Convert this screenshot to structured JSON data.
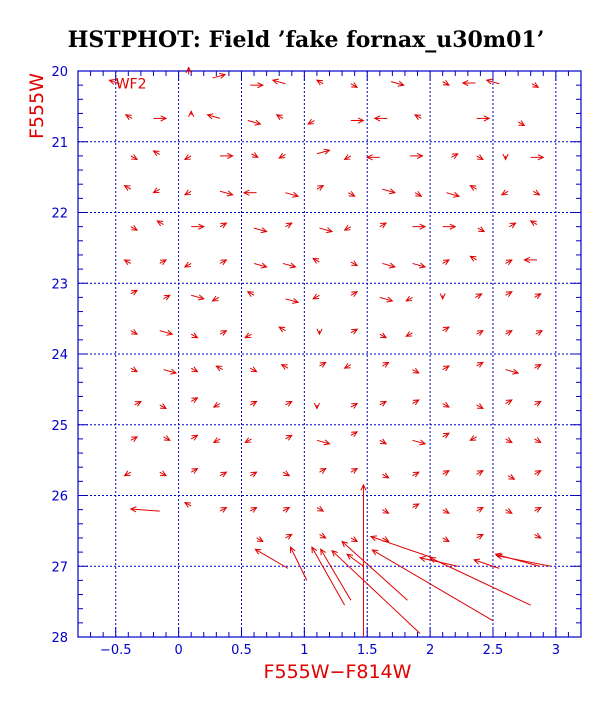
{
  "chart_data": {
    "type": "vector-field",
    "title": "HSTPHOT: Field ’fake fornax_u30m01’",
    "xlabel": "F555W−F814W",
    "ylabel": "F555W",
    "chip_label": "WF2",
    "xlim": [
      -0.8,
      3.2
    ],
    "ylim": [
      28,
      20
    ],
    "xticks": [
      -0.5,
      0,
      0.5,
      1,
      1.5,
      2,
      2.5,
      3
    ],
    "xtick_labels": [
      "−0.5",
      "0",
      "0.5",
      "1",
      "1.5",
      "2",
      "2.5",
      "3"
    ],
    "yticks": [
      20,
      21,
      22,
      23,
      24,
      25,
      26,
      27,
      28
    ],
    "ytick_labels": [
      "20",
      "21",
      "22",
      "23",
      "24",
      "25",
      "26",
      "27",
      "28"
    ],
    "grid_x": [
      -0.5,
      0,
      0.5,
      1,
      1.5,
      2,
      2.5,
      3
    ],
    "grid_y": [
      21,
      22,
      23,
      24,
      25,
      26,
      27
    ],
    "colors": {
      "axis": "#0000c8",
      "vectors": "#e00000",
      "title": "#000000"
    },
    "vectors": [
      {
        "x": -0.47,
        "y": 20.18,
        "dx": -0.08,
        "dy": -0.05
      },
      {
        "x": 0.08,
        "y": 20.05,
        "dx": 0.0,
        "dy": -0.1
      },
      {
        "x": 0.27,
        "y": 20.1,
        "dx": 0.1,
        "dy": -0.05
      },
      {
        "x": 0.57,
        "y": 20.2,
        "dx": 0.1,
        "dy": 0.0
      },
      {
        "x": 0.85,
        "y": 20.18,
        "dx": -0.1,
        "dy": -0.05
      },
      {
        "x": 1.15,
        "y": 20.18,
        "dx": -0.05,
        "dy": -0.05
      },
      {
        "x": 1.37,
        "y": 20.18,
        "dx": 0.05,
        "dy": 0.05
      },
      {
        "x": 1.69,
        "y": 20.15,
        "dx": 0.1,
        "dy": 0.05
      },
      {
        "x": 2.1,
        "y": 20.15,
        "dx": 0.05,
        "dy": 0.05
      },
      {
        "x": 2.36,
        "y": 20.17,
        "dx": -0.1,
        "dy": 0.0
      },
      {
        "x": 2.55,
        "y": 20.18,
        "dx": -0.1,
        "dy": -0.05
      },
      {
        "x": 2.81,
        "y": 20.18,
        "dx": 0.05,
        "dy": 0.05
      },
      {
        "x": -0.37,
        "y": 20.67,
        "dx": -0.05,
        "dy": -0.05
      },
      {
        "x": -0.2,
        "y": 20.67,
        "dx": 0.1,
        "dy": 0.0
      },
      {
        "x": 0.1,
        "y": 20.62,
        "dx": 0.0,
        "dy": -0.05
      },
      {
        "x": 0.33,
        "y": 20.67,
        "dx": -0.1,
        "dy": -0.05
      },
      {
        "x": 0.55,
        "y": 20.7,
        "dx": 0.1,
        "dy": 0.05
      },
      {
        "x": 0.83,
        "y": 20.67,
        "dx": -0.05,
        "dy": -0.05
      },
      {
        "x": 1.08,
        "y": 20.7,
        "dx": -0.05,
        "dy": 0.05
      },
      {
        "x": 1.37,
        "y": 20.7,
        "dx": 0.1,
        "dy": 0.0
      },
      {
        "x": 1.66,
        "y": 20.67,
        "dx": -0.1,
        "dy": 0.0
      },
      {
        "x": 1.93,
        "y": 20.67,
        "dx": -0.05,
        "dy": -0.05
      },
      {
        "x": 2.37,
        "y": 20.67,
        "dx": 0.1,
        "dy": 0.0
      },
      {
        "x": 2.7,
        "y": 20.72,
        "dx": 0.05,
        "dy": 0.05
      },
      {
        "x": -0.38,
        "y": 21.2,
        "dx": 0.05,
        "dy": 0.05
      },
      {
        "x": -0.15,
        "y": 21.18,
        "dx": -0.05,
        "dy": -0.05
      },
      {
        "x": 0.1,
        "y": 21.2,
        "dx": -0.05,
        "dy": 0.05
      },
      {
        "x": 0.33,
        "y": 21.2,
        "dx": 0.1,
        "dy": 0.0
      },
      {
        "x": 0.58,
        "y": 21.17,
        "dx": 0.05,
        "dy": 0.05
      },
      {
        "x": 0.85,
        "y": 21.18,
        "dx": -0.05,
        "dy": 0.05
      },
      {
        "x": 1.1,
        "y": 21.17,
        "dx": 0.1,
        "dy": -0.05
      },
      {
        "x": 1.37,
        "y": 21.2,
        "dx": -0.05,
        "dy": 0.05
      },
      {
        "x": 1.6,
        "y": 21.22,
        "dx": -0.1,
        "dy": 0.0
      },
      {
        "x": 1.84,
        "y": 21.2,
        "dx": 0.1,
        "dy": 0.0
      },
      {
        "x": 2.17,
        "y": 21.22,
        "dx": 0.05,
        "dy": -0.05
      },
      {
        "x": 2.37,
        "y": 21.2,
        "dx": 0.05,
        "dy": 0.05
      },
      {
        "x": 2.6,
        "y": 21.2,
        "dx": 0.0,
        "dy": 0.05
      },
      {
        "x": 2.8,
        "y": 21.22,
        "dx": 0.1,
        "dy": 0.0
      },
      {
        "x": -0.38,
        "y": 21.67,
        "dx": -0.05,
        "dy": -0.05
      },
      {
        "x": -0.15,
        "y": 21.67,
        "dx": -0.05,
        "dy": 0.05
      },
      {
        "x": 0.1,
        "y": 21.7,
        "dx": -0.05,
        "dy": 0.05
      },
      {
        "x": 0.33,
        "y": 21.7,
        "dx": 0.1,
        "dy": 0.05
      },
      {
        "x": 0.62,
        "y": 21.72,
        "dx": -0.1,
        "dy": 0.0
      },
      {
        "x": 0.85,
        "y": 21.72,
        "dx": 0.1,
        "dy": 0.05
      },
      {
        "x": 1.1,
        "y": 21.67,
        "dx": 0.05,
        "dy": -0.05
      },
      {
        "x": 1.35,
        "y": 21.72,
        "dx": 0.05,
        "dy": 0.05
      },
      {
        "x": 1.62,
        "y": 21.67,
        "dx": 0.1,
        "dy": 0.05
      },
      {
        "x": 1.88,
        "y": 21.72,
        "dx": 0.05,
        "dy": 0.05
      },
      {
        "x": 2.13,
        "y": 21.72,
        "dx": 0.1,
        "dy": 0.05
      },
      {
        "x": 2.37,
        "y": 21.67,
        "dx": -0.05,
        "dy": -0.05
      },
      {
        "x": 2.62,
        "y": 21.7,
        "dx": -0.05,
        "dy": 0.05
      },
      {
        "x": 2.82,
        "y": 21.7,
        "dx": 0.05,
        "dy": 0.05
      },
      {
        "x": -0.38,
        "y": 22.2,
        "dx": 0.05,
        "dy": 0.05
      },
      {
        "x": -0.12,
        "y": 22.17,
        "dx": -0.05,
        "dy": -0.05
      },
      {
        "x": 0.1,
        "y": 22.2,
        "dx": 0.1,
        "dy": 0.0
      },
      {
        "x": 0.33,
        "y": 22.2,
        "dx": 0.05,
        "dy": -0.05
      },
      {
        "x": 0.6,
        "y": 22.22,
        "dx": 0.1,
        "dy": 0.05
      },
      {
        "x": 0.85,
        "y": 22.2,
        "dx": 0.05,
        "dy": -0.05
      },
      {
        "x": 1.12,
        "y": 22.22,
        "dx": 0.1,
        "dy": 0.05
      },
      {
        "x": 1.37,
        "y": 22.2,
        "dx": -0.05,
        "dy": 0.05
      },
      {
        "x": 1.6,
        "y": 22.2,
        "dx": 0.05,
        "dy": -0.05
      },
      {
        "x": 1.86,
        "y": 22.2,
        "dx": 0.1,
        "dy": 0.0
      },
      {
        "x": 2.1,
        "y": 22.2,
        "dx": 0.1,
        "dy": 0.0
      },
      {
        "x": 2.38,
        "y": 22.22,
        "dx": 0.05,
        "dy": 0.05
      },
      {
        "x": 2.63,
        "y": 22.2,
        "dx": 0.05,
        "dy": -0.05
      },
      {
        "x": 2.85,
        "y": 22.17,
        "dx": -0.05,
        "dy": -0.05
      },
      {
        "x": -0.38,
        "y": 22.72,
        "dx": -0.05,
        "dy": -0.05
      },
      {
        "x": -0.15,
        "y": 22.72,
        "dx": 0.05,
        "dy": -0.05
      },
      {
        "x": 0.1,
        "y": 22.72,
        "dx": -0.05,
        "dy": 0.05
      },
      {
        "x": 0.33,
        "y": 22.72,
        "dx": 0.05,
        "dy": -0.05
      },
      {
        "x": 0.6,
        "y": 22.72,
        "dx": 0.1,
        "dy": 0.05
      },
      {
        "x": 0.83,
        "y": 22.72,
        "dx": 0.1,
        "dy": 0.05
      },
      {
        "x": 1.12,
        "y": 22.7,
        "dx": -0.05,
        "dy": -0.05
      },
      {
        "x": 1.37,
        "y": 22.7,
        "dx": 0.05,
        "dy": 0.05
      },
      {
        "x": 1.62,
        "y": 22.72,
        "dx": 0.1,
        "dy": 0.05
      },
      {
        "x": 1.86,
        "y": 22.72,
        "dx": 0.1,
        "dy": 0.05
      },
      {
        "x": 2.1,
        "y": 22.72,
        "dx": 0.05,
        "dy": -0.05
      },
      {
        "x": 2.37,
        "y": 22.67,
        "dx": -0.05,
        "dy": -0.05
      },
      {
        "x": 2.6,
        "y": 22.72,
        "dx": 0.05,
        "dy": -0.05
      },
      {
        "x": 2.85,
        "y": 22.67,
        "dx": -0.1,
        "dy": 0.0
      },
      {
        "x": -0.38,
        "y": 23.15,
        "dx": 0.05,
        "dy": -0.05
      },
      {
        "x": -0.12,
        "y": 23.22,
        "dx": 0.05,
        "dy": -0.05
      },
      {
        "x": 0.1,
        "y": 23.17,
        "dx": 0.1,
        "dy": 0.05
      },
      {
        "x": 0.32,
        "y": 23.2,
        "dx": -0.05,
        "dy": 0.05
      },
      {
        "x": 0.6,
        "y": 23.17,
        "dx": -0.05,
        "dy": -0.05
      },
      {
        "x": 0.85,
        "y": 23.22,
        "dx": 0.1,
        "dy": 0.05
      },
      {
        "x": 1.12,
        "y": 23.17,
        "dx": -0.05,
        "dy": 0.05
      },
      {
        "x": 1.37,
        "y": 23.17,
        "dx": 0.05,
        "dy": -0.05
      },
      {
        "x": 1.6,
        "y": 23.2,
        "dx": 0.1,
        "dy": 0.05
      },
      {
        "x": 1.86,
        "y": 23.2,
        "dx": -0.05,
        "dy": 0.05
      },
      {
        "x": 2.1,
        "y": 23.17,
        "dx": 0.0,
        "dy": 0.05
      },
      {
        "x": 2.36,
        "y": 23.2,
        "dx": 0.05,
        "dy": -0.05
      },
      {
        "x": 2.6,
        "y": 23.17,
        "dx": 0.05,
        "dy": -0.05
      },
      {
        "x": 2.83,
        "y": 23.2,
        "dx": 0.05,
        "dy": -0.05
      },
      {
        "x": -0.38,
        "y": 23.67,
        "dx": 0.05,
        "dy": 0.05
      },
      {
        "x": -0.15,
        "y": 23.67,
        "dx": 0.1,
        "dy": 0.05
      },
      {
        "x": 0.1,
        "y": 23.72,
        "dx": 0.05,
        "dy": 0.05
      },
      {
        "x": 0.33,
        "y": 23.72,
        "dx": 0.05,
        "dy": -0.05
      },
      {
        "x": 0.58,
        "y": 23.72,
        "dx": -0.05,
        "dy": 0.05
      },
      {
        "x": 0.85,
        "y": 23.67,
        "dx": -0.05,
        "dy": -0.05
      },
      {
        "x": 1.12,
        "y": 23.67,
        "dx": 0.0,
        "dy": 0.05
      },
      {
        "x": 1.37,
        "y": 23.7,
        "dx": 0.05,
        "dy": -0.05
      },
      {
        "x": 1.6,
        "y": 23.72,
        "dx": 0.05,
        "dy": 0.05
      },
      {
        "x": 1.86,
        "y": 23.7,
        "dx": -0.05,
        "dy": 0.05
      },
      {
        "x": 2.1,
        "y": 23.67,
        "dx": 0.05,
        "dy": -0.05
      },
      {
        "x": 2.37,
        "y": 23.72,
        "dx": 0.05,
        "dy": -0.05
      },
      {
        "x": 2.6,
        "y": 23.72,
        "dx": 0.05,
        "dy": -0.05
      },
      {
        "x": 2.84,
        "y": 23.72,
        "dx": 0.05,
        "dy": -0.05
      },
      {
        "x": -0.38,
        "y": 24.2,
        "dx": 0.05,
        "dy": 0.05
      },
      {
        "x": -0.12,
        "y": 24.22,
        "dx": 0.1,
        "dy": 0.05
      },
      {
        "x": 0.1,
        "y": 24.2,
        "dx": 0.05,
        "dy": 0.05
      },
      {
        "x": 0.35,
        "y": 24.22,
        "dx": -0.05,
        "dy": -0.05
      },
      {
        "x": 0.57,
        "y": 24.2,
        "dx": 0.05,
        "dy": 0.05
      },
      {
        "x": 0.87,
        "y": 24.2,
        "dx": -0.05,
        "dy": -0.05
      },
      {
        "x": 1.12,
        "y": 24.17,
        "dx": 0.05,
        "dy": -0.05
      },
      {
        "x": 1.37,
        "y": 24.15,
        "dx": -0.05,
        "dy": 0.05
      },
      {
        "x": 1.62,
        "y": 24.17,
        "dx": 0.05,
        "dy": -0.05
      },
      {
        "x": 1.86,
        "y": 24.22,
        "dx": 0.05,
        "dy": 0.05
      },
      {
        "x": 2.1,
        "y": 24.22,
        "dx": 0.05,
        "dy": -0.05
      },
      {
        "x": 2.37,
        "y": 24.17,
        "dx": 0.05,
        "dy": -0.05
      },
      {
        "x": 2.6,
        "y": 24.22,
        "dx": 0.1,
        "dy": 0.05
      },
      {
        "x": 2.83,
        "y": 24.2,
        "dx": 0.05,
        "dy": -0.05
      },
      {
        "x": -0.35,
        "y": 24.72,
        "dx": 0.05,
        "dy": -0.05
      },
      {
        "x": -0.15,
        "y": 24.72,
        "dx": 0.05,
        "dy": 0.05
      },
      {
        "x": 0.1,
        "y": 24.67,
        "dx": 0.05,
        "dy": -0.05
      },
      {
        "x": 0.33,
        "y": 24.7,
        "dx": -0.05,
        "dy": 0.05
      },
      {
        "x": 0.57,
        "y": 24.72,
        "dx": 0.05,
        "dy": -0.05
      },
      {
        "x": 0.85,
        "y": 24.72,
        "dx": 0.05,
        "dy": -0.05
      },
      {
        "x": 1.1,
        "y": 24.72,
        "dx": 0.0,
        "dy": 0.05
      },
      {
        "x": 1.37,
        "y": 24.75,
        "dx": 0.05,
        "dy": -0.05
      },
      {
        "x": 1.6,
        "y": 24.72,
        "dx": 0.05,
        "dy": -0.05
      },
      {
        "x": 1.86,
        "y": 24.7,
        "dx": 0.05,
        "dy": -0.05
      },
      {
        "x": 2.1,
        "y": 24.7,
        "dx": 0.05,
        "dy": 0.05
      },
      {
        "x": 2.37,
        "y": 24.72,
        "dx": 0.05,
        "dy": 0.05
      },
      {
        "x": 2.6,
        "y": 24.7,
        "dx": 0.05,
        "dy": -0.05
      },
      {
        "x": 2.83,
        "y": 24.72,
        "dx": 0.05,
        "dy": -0.05
      },
      {
        "x": -0.38,
        "y": 25.22,
        "dx": 0.05,
        "dy": -0.05
      },
      {
        "x": -0.12,
        "y": 25.17,
        "dx": 0.05,
        "dy": 0.05
      },
      {
        "x": 0.1,
        "y": 25.2,
        "dx": 0.05,
        "dy": -0.05
      },
      {
        "x": 0.33,
        "y": 25.2,
        "dx": -0.05,
        "dy": 0.05
      },
      {
        "x": 0.58,
        "y": 25.2,
        "dx": -0.05,
        "dy": 0.05
      },
      {
        "x": 0.85,
        "y": 25.2,
        "dx": 0.05,
        "dy": -0.05
      },
      {
        "x": 1.1,
        "y": 25.22,
        "dx": 0.1,
        "dy": 0.05
      },
      {
        "x": 1.37,
        "y": 25.15,
        "dx": 0.05,
        "dy": -0.05
      },
      {
        "x": 1.6,
        "y": 25.22,
        "dx": 0.05,
        "dy": 0.05
      },
      {
        "x": 1.86,
        "y": 25.22,
        "dx": 0.1,
        "dy": 0.05
      },
      {
        "x": 2.1,
        "y": 25.17,
        "dx": 0.05,
        "dy": -0.05
      },
      {
        "x": 2.37,
        "y": 25.17,
        "dx": -0.05,
        "dy": 0.05
      },
      {
        "x": 2.6,
        "y": 25.2,
        "dx": 0.05,
        "dy": 0.05
      },
      {
        "x": 2.83,
        "y": 25.2,
        "dx": 0.05,
        "dy": 0.05
      },
      {
        "x": -0.38,
        "y": 25.67,
        "dx": -0.05,
        "dy": 0.05
      },
      {
        "x": -0.15,
        "y": 25.67,
        "dx": 0.05,
        "dy": 0.05
      },
      {
        "x": 0.1,
        "y": 25.67,
        "dx": 0.05,
        "dy": -0.05
      },
      {
        "x": 0.33,
        "y": 25.72,
        "dx": 0.05,
        "dy": -0.05
      },
      {
        "x": 0.57,
        "y": 25.72,
        "dx": 0.05,
        "dy": -0.05
      },
      {
        "x": 0.83,
        "y": 25.67,
        "dx": 0.05,
        "dy": 0.05
      },
      {
        "x": 1.12,
        "y": 25.67,
        "dx": 0.05,
        "dy": -0.05
      },
      {
        "x": 1.37,
        "y": 25.67,
        "dx": 0.05,
        "dy": -0.05
      },
      {
        "x": 1.62,
        "y": 25.7,
        "dx": 0.05,
        "dy": 0.05
      },
      {
        "x": 1.86,
        "y": 25.72,
        "dx": 0.05,
        "dy": -0.05
      },
      {
        "x": 2.1,
        "y": 25.7,
        "dx": 0.05,
        "dy": -0.05
      },
      {
        "x": 2.37,
        "y": 25.7,
        "dx": 0.05,
        "dy": -0.05
      },
      {
        "x": 2.62,
        "y": 25.72,
        "dx": 0.05,
        "dy": 0.05
      },
      {
        "x": 2.83,
        "y": 25.7,
        "dx": 0.05,
        "dy": -0.05
      },
      {
        "x": -0.15,
        "y": 26.22,
        "dx": -0.23,
        "dy": -0.03
      },
      {
        "x": 0.1,
        "y": 26.15,
        "dx": -0.05,
        "dy": -0.05
      },
      {
        "x": 0.33,
        "y": 26.22,
        "dx": 0.05,
        "dy": -0.05
      },
      {
        "x": 0.57,
        "y": 26.22,
        "dx": 0.05,
        "dy": -0.05
      },
      {
        "x": 0.83,
        "y": 26.22,
        "dx": 0.05,
        "dy": -0.05
      },
      {
        "x": 1.1,
        "y": 26.17,
        "dx": 0.05,
        "dy": 0.05
      },
      {
        "x": 1.47,
        "y": 28.0,
        "dx": 0.0,
        "dy": -2.15
      },
      {
        "x": 1.62,
        "y": 26.2,
        "dx": 0.05,
        "dy": 0.05
      },
      {
        "x": 1.86,
        "y": 26.17,
        "dx": 0.05,
        "dy": -0.05
      },
      {
        "x": 2.1,
        "y": 26.2,
        "dx": 0.05,
        "dy": 0.05
      },
      {
        "x": 2.37,
        "y": 26.22,
        "dx": 0.05,
        "dy": -0.05
      },
      {
        "x": 2.6,
        "y": 26.2,
        "dx": 0.05,
        "dy": 0.05
      },
      {
        "x": 2.83,
        "y": 26.22,
        "dx": 0.05,
        "dy": -0.05
      },
      {
        "x": 0.62,
        "y": 26.6,
        "dx": 0.05,
        "dy": 0.05
      },
      {
        "x": 0.85,
        "y": 26.6,
        "dx": 0.05,
        "dy": -0.05
      },
      {
        "x": 1.12,
        "y": 26.55,
        "dx": 0.05,
        "dy": 0.05
      },
      {
        "x": 1.37,
        "y": 26.6,
        "dx": 0.05,
        "dy": 0.05
      },
      {
        "x": 1.62,
        "y": 26.6,
        "dx": 0.05,
        "dy": 0.05
      },
      {
        "x": 2.1,
        "y": 26.6,
        "dx": 0.05,
        "dy": 0.05
      },
      {
        "x": 2.37,
        "y": 26.6,
        "dx": 0.05,
        "dy": -0.05
      },
      {
        "x": 2.83,
        "y": 26.55,
        "dx": 0.05,
        "dy": 0.05
      },
      {
        "x": 0.87,
        "y": 27.03,
        "dx": -0.26,
        "dy": -0.27
      },
      {
        "x": 1.02,
        "y": 27.2,
        "dx": -0.13,
        "dy": -0.47
      },
      {
        "x": 1.32,
        "y": 27.55,
        "dx": -0.26,
        "dy": -0.82
      },
      {
        "x": 1.37,
        "y": 27.48,
        "dx": -0.24,
        "dy": -0.72
      },
      {
        "x": 1.47,
        "y": 27.0,
        "dx": -0.13,
        "dy": -0.17
      },
      {
        "x": 1.82,
        "y": 27.48,
        "dx": -0.52,
        "dy": -0.83
      },
      {
        "x": 1.92,
        "y": 27.95,
        "dx": -0.7,
        "dy": -1.17
      },
      {
        "x": 2.02,
        "y": 26.88,
        "dx": -0.49,
        "dy": -0.3
      },
      {
        "x": 2.22,
        "y": 27.0,
        "dx": -0.3,
        "dy": -0.12
      },
      {
        "x": 2.5,
        "y": 27.77,
        "dx": -0.96,
        "dy": -1.0
      },
      {
        "x": 2.55,
        "y": 27.03,
        "dx": -0.2,
        "dy": -0.12
      },
      {
        "x": 2.8,
        "y": 27.55,
        "dx": -0.8,
        "dy": -0.67
      },
      {
        "x": 2.96,
        "y": 27.0,
        "dx": -0.43,
        "dy": -0.15
      },
      {
        "x": 2.87,
        "y": 27.0,
        "dx": -0.35,
        "dy": -0.17
      }
    ]
  }
}
